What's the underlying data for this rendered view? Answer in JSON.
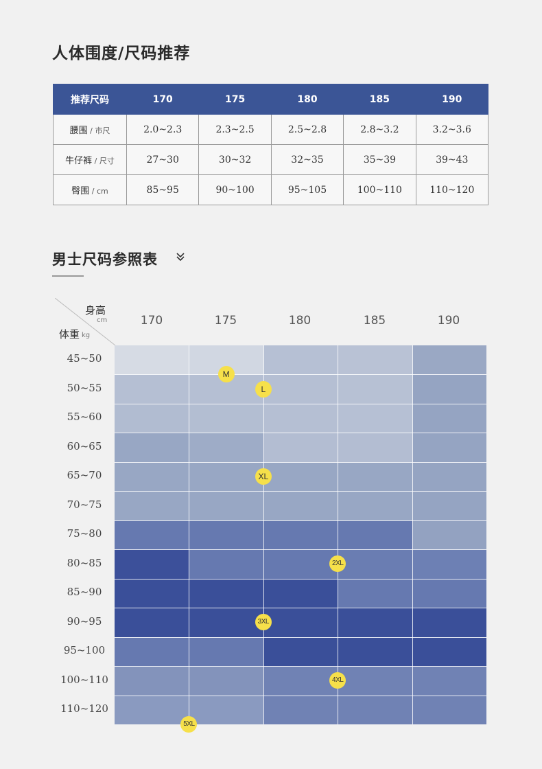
{
  "section1": {
    "title": "人体围度/尺码推荐",
    "header": [
      "推荐尺码",
      "170",
      "175",
      "180",
      "185",
      "190"
    ],
    "rows": [
      {
        "label": "腰围",
        "unit": " / 市尺",
        "values": [
          "2.0~2.3",
          "2.3~2.5",
          "2.5~2.8",
          "2.8~3.2",
          "3.2~3.6"
        ]
      },
      {
        "label": "牛仔裤",
        "unit": " / 尺寸",
        "values": [
          "27~30",
          "30~32",
          "32~35",
          "35~39",
          "39~43"
        ]
      },
      {
        "label": "臀围",
        "unit": " / cm",
        "values": [
          "85~95",
          "90~100",
          "95~105",
          "100~110",
          "110~120"
        ]
      }
    ]
  },
  "section2": {
    "title": "男士尺码参照表",
    "height_label": "身高",
    "height_unit": "cm",
    "weight_label": "体重",
    "weight_unit": "kg",
    "heights": [
      "170",
      "175",
      "180",
      "185",
      "190"
    ],
    "weights": [
      "45~50",
      "50~55",
      "55~60",
      "60~65",
      "65~70",
      "70~75",
      "75~80",
      "80~85",
      "85~90",
      "90~95",
      "95~100",
      "100~110",
      "110~120"
    ]
  },
  "colors": {
    "header_blue": "#3b5596",
    "badge_yellow": "#f6e04a",
    "grid": [
      [
        "#d6dbe4",
        "#d1d7e2",
        "#b6c0d4",
        "#b9c2d5",
        "#9aa8c4"
      ],
      [
        "#b5bfd3",
        "#b5bfd3",
        "#b5bfd3",
        "#b7c1d4",
        "#95a4c2"
      ],
      [
        "#b1bcd1",
        "#b3bed2",
        "#b5bfd3",
        "#b6c0d4",
        "#95a4c2"
      ],
      [
        "#98a7c4",
        "#9eacc7",
        "#b3bdd2",
        "#b3bdd2",
        "#95a4c2"
      ],
      [
        "#98a7c4",
        "#98a7c4",
        "#98a7c4",
        "#98a7c4",
        "#95a4c2"
      ],
      [
        "#98a7c4",
        "#98a7c4",
        "#98a7c4",
        "#98a7c4",
        "#95a4c2"
      ],
      [
        "#6679b0",
        "#6679b0",
        "#6679b0",
        "#6679b0",
        "#93a2c1"
      ],
      [
        "#3c509a",
        "#6679b0",
        "#6679b0",
        "#6a7db2",
        "#6d80b4"
      ],
      [
        "#3a4f99",
        "#3a4f99",
        "#3a4f99",
        "#6679b0",
        "#6679b0"
      ],
      [
        "#3a4f99",
        "#3a4f99",
        "#3a4f99",
        "#3a4f99",
        "#3a4f99"
      ],
      [
        "#6679b0",
        "#6679b0",
        "#3a4f99",
        "#3a4f99",
        "#3a4f99"
      ],
      [
        "#8393bb",
        "#8393bb",
        "#7082b4",
        "#7082b4",
        "#7082b4"
      ],
      [
        "#8a9ac0",
        "#8a9ac0",
        "#7082b4",
        "#7082b4",
        "#7082b4"
      ]
    ]
  },
  "sizes": [
    {
      "label": "M",
      "height_pos": 0.5,
      "weight_pos": 0.5
    },
    {
      "label": "L",
      "height_pos": 1.0,
      "weight_pos": 1.0
    },
    {
      "label": "XL",
      "height_pos": 1.0,
      "weight_pos": 4.0
    },
    {
      "label": "2XL",
      "height_pos": 2.0,
      "weight_pos": 7.0
    },
    {
      "label": "3XL",
      "height_pos": 1.0,
      "weight_pos": 9.0
    },
    {
      "label": "4XL",
      "height_pos": 2.0,
      "weight_pos": 11.0
    },
    {
      "label": "5XL",
      "height_pos": 0.0,
      "weight_pos": 12.5
    }
  ]
}
